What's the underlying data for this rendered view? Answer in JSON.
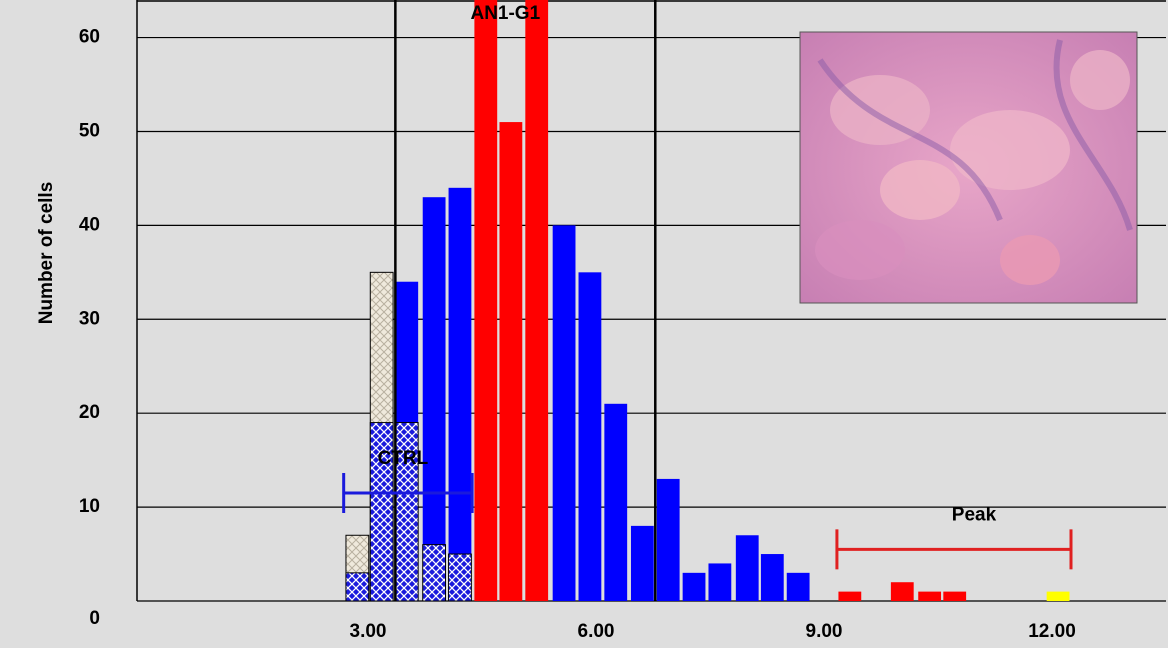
{
  "chart_data": {
    "type": "histogram-overlay",
    "y_label": "Number of cells",
    "xlim": [
      0,
      13.5
    ],
    "ylim": [
      0,
      64
    ],
    "xticks": [
      {
        "value": 3,
        "label": "3.00"
      },
      {
        "value": 6,
        "label": "6.00"
      },
      {
        "value": 9,
        "label": "9.00"
      },
      {
        "value": 12,
        "label": "12.00"
      }
    ],
    "yticks": [
      0,
      10,
      20,
      30,
      40,
      50,
      60
    ],
    "grid": true,
    "bar_width": 0.3,
    "series": [
      {
        "color": "#efe9dc",
        "hatch": true,
        "x": [
          2.86,
          3.18
        ],
        "values": [
          7,
          35
        ]
      },
      {
        "color": "#0000ff",
        "x": [
          3.51,
          3.87,
          4.21,
          5.58,
          5.92,
          6.26,
          6.61,
          6.95,
          7.29,
          7.63,
          7.99,
          8.32,
          8.66
        ],
        "values": [
          34,
          43,
          44,
          40,
          35,
          21,
          8,
          13,
          3,
          4,
          7,
          5,
          3
        ]
      },
      {
        "color": "#ff0000",
        "x": [
          4.55,
          4.88,
          5.22,
          9.34,
          10.03,
          10.39,
          10.72
        ],
        "values": [
          64,
          51,
          64,
          1,
          2,
          1,
          1
        ]
      },
      {
        "color": "#ffff00",
        "x": [
          12.08
        ],
        "values": [
          1
        ]
      },
      {
        "color": "#1a1adc",
        "hatch": true,
        "x": [
          2.86,
          3.18,
          3.51,
          3.87,
          4.21
        ],
        "values": [
          3,
          19,
          19,
          6,
          5
        ]
      }
    ],
    "gates": [
      3.36,
      6.78
    ],
    "gate_label": "AN1-G1",
    "ranges": [
      {
        "label": "CTRL",
        "color": "#1a1adc",
        "x": [
          2.68,
          4.37
        ],
        "y": 11.5
      },
      {
        "label": "Peak",
        "color": "#e02020",
        "x": [
          9.17,
          12.25
        ],
        "y": 5.5
      }
    ]
  }
}
